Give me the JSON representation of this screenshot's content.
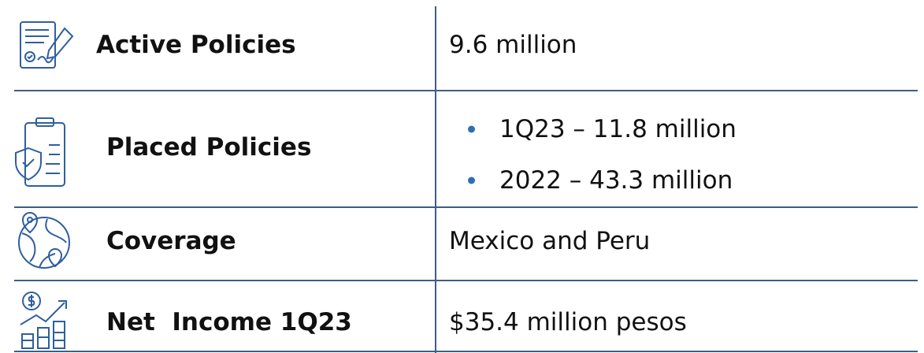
{
  "rows": [
    {
      "label": "Active Policies",
      "value": "9.6 million"
    },
    {
      "label": "Placed Policies",
      "values": [
        "1Q23 – 11.8 million",
        "2022 – 43.3 million"
      ]
    },
    {
      "label": "Coverage",
      "value": "Mexico and Peru"
    },
    {
      "label": "Net  Income 1Q23",
      "value": "$35.4 million pesos"
    }
  ]
}
